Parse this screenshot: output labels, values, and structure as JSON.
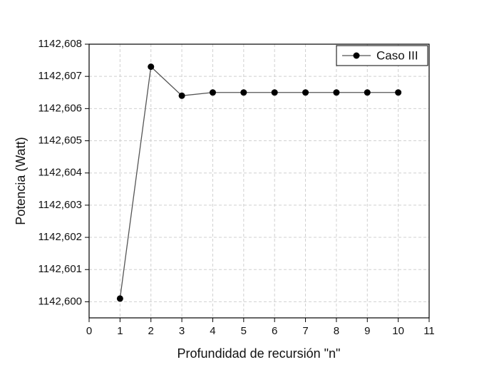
{
  "chart_data": {
    "type": "line",
    "xlabel": "Profundidad de recursión \"n\"",
    "ylabel": "Potencia (Watt)",
    "x": [
      1,
      2,
      3,
      4,
      5,
      6,
      7,
      8,
      9,
      10
    ],
    "series": [
      {
        "name": "Caso III",
        "color": "#000000",
        "values": [
          1142.6001,
          1142.6073,
          1142.6064,
          1142.6065,
          1142.6065,
          1142.6065,
          1142.6065,
          1142.6065,
          1142.6065,
          1142.6065
        ]
      }
    ],
    "xlim": [
      0,
      11
    ],
    "xticks": [
      0,
      1,
      2,
      3,
      4,
      5,
      6,
      7,
      8,
      9,
      10,
      11
    ],
    "ylim": [
      1142.5995,
      1142.608
    ],
    "yticks": [
      {
        "value": 1142.6,
        "label": "1142,600"
      },
      {
        "value": 1142.601,
        "label": "1142,601"
      },
      {
        "value": 1142.602,
        "label": "1142,602"
      },
      {
        "value": 1142.603,
        "label": "1142,603"
      },
      {
        "value": 1142.604,
        "label": "1142,604"
      },
      {
        "value": 1142.605,
        "label": "1142,605"
      },
      {
        "value": 1142.606,
        "label": "1142,606"
      },
      {
        "value": 1142.607,
        "label": "1142,607"
      },
      {
        "value": 1142.608,
        "label": "1142,608"
      }
    ],
    "grid": true,
    "legend": "upper right"
  }
}
